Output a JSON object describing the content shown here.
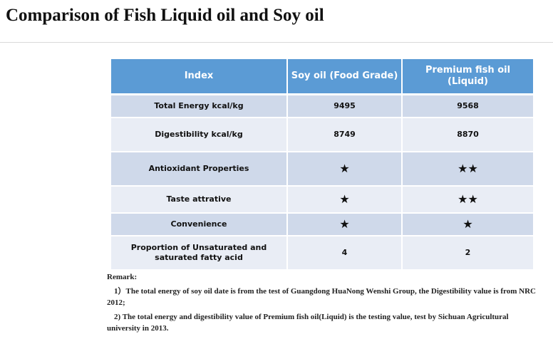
{
  "title": "Comparison of Fish Liquid oil and Soy oil",
  "table": {
    "headers": [
      "Index",
      "Soy oil (Food Grade)",
      "Premium fish oil (Liquid)"
    ],
    "rows": [
      [
        "Total Energy  kcal/kg",
        "9495",
        "9568"
      ],
      [
        "Digestibility kcal/kg",
        "8749",
        "8870"
      ],
      [
        "Antioxidant Properties",
        "★",
        "★★"
      ],
      [
        "Taste attrative",
        "★",
        "★★"
      ],
      [
        "Convenience",
        "★",
        "★"
      ],
      [
        "Proportion of Unsaturated and saturated fatty acid",
        "4",
        "2"
      ]
    ]
  },
  "remark": {
    "heading": "Remark:",
    "note1": "1）The total energy of soy oil date is from the test of Guangdong HuaNong Wenshi Group, the Digestibility value  is from NRC 2012;",
    "note2": "2) The total energy and digestibility value of Premium fish oil(Liquid) is the testing value, test by Sichuan Agricultural university in 2013."
  },
  "colors": {
    "header_bg": "#5b9bd5",
    "row_dark": "#cfd9ea",
    "row_light": "#e9edf5"
  }
}
